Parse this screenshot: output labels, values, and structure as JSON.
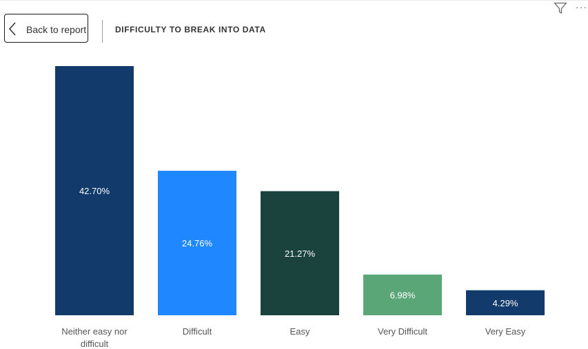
{
  "header": {
    "back_label": "Back to report",
    "title": "DIFFICULTY TO BREAK INTO DATA",
    "icons": {
      "back": "chevron-left-icon",
      "filter": "filter-icon",
      "more": "more-options-icon"
    }
  },
  "chart_data": {
    "type": "bar",
    "title": "DIFFICULTY TO BREAK INTO DATA",
    "categories": [
      "Neither easy nor difficult",
      "Difficult",
      "Easy",
      "Very Difficult",
      "Very Easy"
    ],
    "category_lines": [
      [
        "Neither easy nor",
        "difficult"
      ],
      [
        "Difficult"
      ],
      [
        "Easy"
      ],
      [
        "Very Difficult"
      ],
      [
        "Very Easy"
      ]
    ],
    "values": [
      42.7,
      24.76,
      21.27,
      6.98,
      4.29
    ],
    "data_labels": [
      "42.70%",
      "24.76%",
      "21.27%",
      "6.98%",
      "4.29%"
    ],
    "colors": [
      "#123b6b",
      "#1f87ff",
      "#1b433e",
      "#5ba676",
      "#123b6b"
    ],
    "label_color": "#ffffff",
    "axis_label_color": "#555555",
    "ylim": [
      0,
      42.7
    ],
    "xlabel": "",
    "ylabel": "",
    "grid": false,
    "legend": "none"
  }
}
